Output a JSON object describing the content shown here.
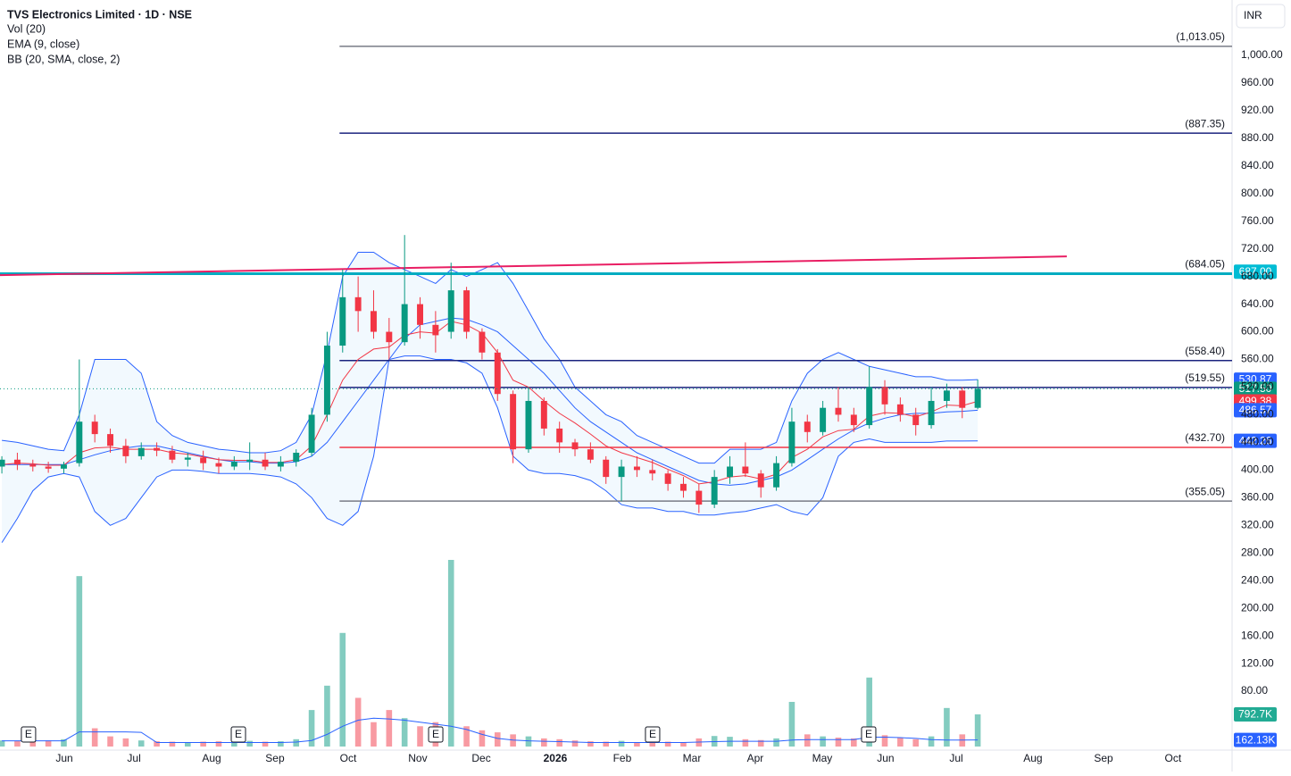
{
  "chart_data": {
    "type": "candlestick",
    "title": "TVS Electronics Limited · 1D · NSE",
    "indicators": [
      "Vol (20)",
      "EMA (9, close)",
      "BB (20, SMA, close, 2)"
    ],
    "currency": "INR",
    "xlim": [
      -0.12,
      79.42
    ],
    "xticks": [
      {
        "value": 4.03,
        "label": "Jun"
      },
      {
        "value": 8.53,
        "label": "Jul"
      },
      {
        "value": 13.54,
        "label": "Aug"
      },
      {
        "value": 17.63,
        "label": "Sep"
      },
      {
        "value": 22.36,
        "label": "Oct"
      },
      {
        "value": 26.85,
        "label": "Nov"
      },
      {
        "value": 30.95,
        "label": "Dec"
      },
      {
        "value": 35.73,
        "label": "2026"
      },
      {
        "value": 40.05,
        "label": "Feb"
      },
      {
        "value": 44.55,
        "label": "Mar"
      },
      {
        "value": 48.64,
        "label": "Apr"
      },
      {
        "value": 52.96,
        "label": "May"
      },
      {
        "value": 57.05,
        "label": "Jun"
      },
      {
        "value": 61.61,
        "label": "Jul"
      },
      {
        "value": 66.56,
        "label": "Aug"
      },
      {
        "value": 71.12,
        "label": "Sep"
      },
      {
        "value": 75.61,
        "label": "Oct"
      }
    ],
    "ylim": [
      0,
      1080
    ],
    "yticks": [
      {
        "value": 1000,
        "label": "1,000.00"
      },
      {
        "value": 960,
        "label": "960.00"
      },
      {
        "value": 920,
        "label": "920.00"
      },
      {
        "value": 880,
        "label": "880.00"
      },
      {
        "value": 840,
        "label": "840.00"
      },
      {
        "value": 800,
        "label": "800.00"
      },
      {
        "value": 760,
        "label": "760.00"
      },
      {
        "value": 720,
        "label": "720.00"
      },
      {
        "value": 680,
        "label": "680.00"
      },
      {
        "value": 640,
        "label": "640.00"
      },
      {
        "value": 600,
        "label": "600.00"
      },
      {
        "value": 560,
        "label": "560.00"
      },
      {
        "value": 520,
        "label": "520.00"
      },
      {
        "value": 480,
        "label": "480.00"
      },
      {
        "value": 440,
        "label": "440.00"
      },
      {
        "value": 400,
        "label": "400.00"
      },
      {
        "value": 360,
        "label": "360.00"
      },
      {
        "value": 320,
        "label": "320.00"
      },
      {
        "value": 280,
        "label": "280.00"
      },
      {
        "value": 240,
        "label": "240.00"
      },
      {
        "value": 200,
        "label": "200.00"
      },
      {
        "value": 160,
        "label": "160.00"
      },
      {
        "value": 120,
        "label": "120.00"
      },
      {
        "value": 80,
        "label": "80.00"
      }
    ],
    "grid": false,
    "up_color": "#089981",
    "down_color": "#f23645",
    "open": [
      405,
      415,
      408,
      405,
      402,
      410,
      470,
      452,
      435,
      420,
      432,
      428,
      415,
      418,
      410,
      405,
      412,
      415,
      405,
      412,
      425,
      480,
      580,
      650,
      630,
      600,
      585,
      640,
      610,
      600,
      660,
      600,
      570,
      510,
      430,
      500,
      460,
      440,
      430,
      415,
      390,
      405,
      400,
      395,
      380,
      370,
      350,
      390,
      405,
      395,
      375,
      410,
      470,
      455,
      490,
      480,
      465,
      520,
      495,
      480,
      465,
      500,
      515,
      490
    ],
    "high": [
      420,
      425,
      415,
      412,
      412,
      560,
      480,
      460,
      445,
      440,
      440,
      435,
      425,
      428,
      418,
      420,
      440,
      425,
      420,
      430,
      490,
      600,
      690,
      680,
      660,
      620,
      740,
      650,
      630,
      700,
      665,
      605,
      575,
      515,
      520,
      505,
      470,
      445,
      440,
      420,
      415,
      420,
      415,
      400,
      390,
      380,
      400,
      420,
      440,
      400,
      420,
      490,
      480,
      500,
      520,
      490,
      550,
      530,
      505,
      490,
      520,
      525,
      520,
      531
    ],
    "low": [
      395,
      400,
      398,
      396,
      395,
      405,
      440,
      425,
      410,
      415,
      420,
      410,
      405,
      400,
      395,
      400,
      400,
      400,
      398,
      405,
      420,
      470,
      570,
      600,
      590,
      560,
      580,
      590,
      570,
      590,
      590,
      560,
      500,
      410,
      425,
      450,
      425,
      420,
      410,
      380,
      355,
      390,
      385,
      370,
      360,
      338,
      345,
      380,
      390,
      360,
      370,
      405,
      440,
      450,
      470,
      455,
      460,
      480,
      470,
      450,
      460,
      490,
      475,
      488
    ],
    "close": [
      415,
      408,
      405,
      402,
      408,
      470,
      452,
      435,
      420,
      432,
      428,
      415,
      418,
      410,
      405,
      412,
      415,
      405,
      412,
      425,
      480,
      580,
      650,
      630,
      600,
      585,
      640,
      610,
      595,
      660,
      600,
      570,
      510,
      430,
      500,
      460,
      440,
      430,
      415,
      390,
      405,
      400,
      395,
      380,
      370,
      350,
      390,
      405,
      395,
      375,
      410,
      470,
      455,
      490,
      480,
      465,
      520,
      495,
      480,
      465,
      500,
      515,
      490,
      517.5
    ],
    "ema": {
      "color": "#f23645",
      "values": [
        408,
        410,
        409,
        407,
        407,
        425,
        432,
        433,
        430,
        430,
        430,
        425,
        423,
        419,
        415,
        414,
        414,
        411,
        411,
        415,
        435,
        480,
        530,
        560,
        575,
        578,
        595,
        600,
        598,
        615,
        610,
        598,
        570,
        530,
        520,
        500,
        482,
        468,
        452,
        435,
        425,
        418,
        411,
        401,
        392,
        380,
        383,
        390,
        392,
        387,
        394,
        418,
        430,
        448,
        457,
        459,
        478,
        483,
        482,
        477,
        484,
        494,
        493,
        499.38
      ]
    },
    "bb": {
      "color": "#2962ff",
      "fill": "#2196f3",
      "upper": [
        443,
        440,
        435,
        430,
        428,
        480,
        560,
        560,
        560,
        540,
        470,
        450,
        440,
        435,
        430,
        428,
        425,
        425,
        428,
        440,
        480,
        570,
        680,
        715,
        715,
        700,
        690,
        680,
        670,
        690,
        680,
        690,
        700,
        670,
        630,
        590,
        560,
        520,
        500,
        480,
        470,
        450,
        440,
        430,
        420,
        410,
        410,
        430,
        430,
        430,
        440,
        500,
        540,
        560,
        570,
        560,
        550,
        545,
        540,
        535,
        535,
        530,
        530,
        530.87
      ],
      "basis": [
        408,
        408,
        408,
        408,
        408,
        415,
        422,
        428,
        432,
        435,
        435,
        430,
        425,
        420,
        415,
        412,
        412,
        410,
        410,
        412,
        420,
        440,
        470,
        500,
        530,
        560,
        590,
        610,
        615,
        620,
        618,
        610,
        600,
        580,
        560,
        540,
        515,
        490,
        470,
        455,
        440,
        425,
        415,
        405,
        395,
        385,
        380,
        378,
        380,
        385,
        390,
        400,
        415,
        430,
        445,
        458,
        468,
        475,
        480,
        482,
        482,
        484,
        485,
        486.57
      ],
      "lower": [
        295,
        330,
        370,
        390,
        395,
        390,
        340,
        320,
        330,
        360,
        390,
        400,
        400,
        398,
        395,
        395,
        395,
        393,
        390,
        380,
        360,
        330,
        320,
        340,
        420,
        560,
        565,
        565,
        560,
        560,
        555,
        540,
        490,
        420,
        400,
        395,
        395,
        392,
        385,
        370,
        350,
        345,
        345,
        340,
        340,
        335,
        335,
        338,
        340,
        345,
        350,
        340,
        335,
        360,
        420,
        440,
        445,
        440,
        440,
        440,
        440,
        442,
        442,
        442.26
      ]
    },
    "volume": {
      "ylim": [
        0,
        18400000
      ],
      "values": [
        150000,
        140000,
        160000,
        150000,
        180000,
        4200000,
        450000,
        250000,
        200000,
        150000,
        130000,
        120000,
        110000,
        120000,
        130000,
        110000,
        140000,
        120000,
        130000,
        180000,
        900000,
        1500000,
        2800000,
        1200000,
        600000,
        900000,
        700000,
        500000,
        600000,
        4600000,
        500000,
        400000,
        350000,
        300000,
        250000,
        200000,
        180000,
        150000,
        130000,
        120000,
        140000,
        110000,
        100000,
        120000,
        110000,
        200000,
        260000,
        240000,
        180000,
        160000,
        200000,
        1100000,
        300000,
        250000,
        220000,
        200000,
        1700000,
        280000,
        220000,
        180000,
        250000,
        950000,
        300000,
        792700
      ],
      "ma": {
        "color": "#2962ff",
        "values": [
          140000,
          140000,
          140000,
          140000,
          140000,
          360000,
          360000,
          360000,
          360000,
          350000,
          100000,
          100000,
          100000,
          100000,
          100000,
          100000,
          100000,
          100000,
          100000,
          110000,
          150000,
          300000,
          500000,
          650000,
          700000,
          680000,
          650000,
          600000,
          550000,
          500000,
          420000,
          300000,
          200000,
          160000,
          140000,
          130000,
          120000,
          110000,
          100000,
          100000,
          100000,
          100000,
          100000,
          100000,
          100000,
          110000,
          120000,
          130000,
          130000,
          130000,
          130000,
          160000,
          170000,
          170000,
          170000,
          170000,
          230000,
          230000,
          220000,
          200000,
          170000,
          160000,
          160000,
          162130
        ]
      },
      "tags": [
        {
          "value": 792700,
          "label": "792.7K",
          "color": "#22ab94"
        },
        {
          "value": 162130,
          "label": "162.13K",
          "color": "#2962ff"
        }
      ]
    },
    "levels": [
      {
        "value": 1013.05,
        "label": "(1,013.05)",
        "color": "#787b86",
        "start": 21.8
      },
      {
        "value": 887.35,
        "label": "(887.35)",
        "color": "#1a237e",
        "start": 21.8
      },
      {
        "value": 684.05,
        "label": "(684.05)",
        "color": "#00acc1",
        "start": -0.12
      },
      {
        "value": 558.4,
        "label": "(558.40)",
        "color": "#1a237e",
        "start": 21.8
      },
      {
        "value": 519.55,
        "label": "(519.55)",
        "color": "#1a237e",
        "start": 21.8
      },
      {
        "value": 432.7,
        "label": "(432.70)",
        "color": "#f23645",
        "start": 21.8
      },
      {
        "value": 355.05,
        "label": "(355.05)",
        "color": "#787b86",
        "start": 21.8
      }
    ],
    "trendline": {
      "color": "#e91e63",
      "x": [
        -0.12,
        68.75
      ],
      "y": [
        682,
        709
      ]
    },
    "price_tags": [
      {
        "value": 687,
        "label": "687.00",
        "color": "#00bcd4"
      },
      {
        "value": 530.87,
        "label": "530.87",
        "color": "#2962ff"
      },
      {
        "value": 517.5,
        "label": "517.50",
        "color": "#089981"
      },
      {
        "value": 499.38,
        "label": "499.38",
        "color": "#f23645"
      },
      {
        "value": 486.57,
        "label": "486.57",
        "color": "#2962ff"
      },
      {
        "value": 442.26,
        "label": "442.26",
        "color": "#2962ff"
      }
    ],
    "events": {
      "label": "E",
      "x": [
        1.72,
        15.27,
        28.01,
        42.01,
        55.96
      ]
    }
  }
}
